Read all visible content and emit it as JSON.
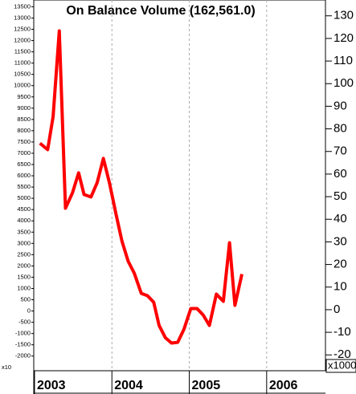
{
  "chart_data": {
    "type": "line",
    "title": "On Balance Volume (162,561.0)",
    "y_unit_label": "x10",
    "y2_unit_label": "x1000",
    "x": [
      2003.07,
      2003.17,
      2003.24,
      2003.32,
      2003.4,
      2003.49,
      2003.57,
      2003.64,
      2003.73,
      2003.81,
      2003.89,
      2003.97,
      2004.05,
      2004.13,
      2004.21,
      2004.29,
      2004.38,
      2004.46,
      2004.54,
      2004.61,
      2004.69,
      2004.77,
      2004.85,
      2004.93,
      2005.02,
      2005.1,
      2005.18,
      2005.26,
      2005.35,
      2005.44,
      2005.52,
      2005.59,
      2005.68
    ],
    "series": [
      {
        "name": "On Balance Volume",
        "color": "#ff0000",
        "values": [
          7445,
          7160,
          8620,
          12430,
          4560,
          5240,
          6130,
          5170,
          5060,
          5700,
          6770,
          5660,
          4350,
          3100,
          2210,
          1670,
          780,
          680,
          390,
          -640,
          -1180,
          -1420,
          -1390,
          -820,
          110,
          110,
          -180,
          -640,
          750,
          430,
          3030,
          250,
          1640
        ]
      }
    ],
    "xlim": [
      2002.99,
      2006.76
    ],
    "xticks": [
      2003,
      2004,
      2005,
      2006
    ],
    "ylim": [
      -2650,
      13800
    ],
    "yticks": [
      -2000,
      -1500,
      -1000,
      -500,
      0,
      500,
      1000,
      1500,
      2000,
      2500,
      3000,
      3500,
      4000,
      4500,
      5000,
      5500,
      6000,
      6500,
      7000,
      7500,
      8000,
      8500,
      9000,
      9500,
      10000,
      10500,
      11000,
      11500,
      12000,
      12500,
      13000,
      13500
    ],
    "y2lim": [
      -27,
      137
    ],
    "y2ticks": [
      -20,
      -10,
      0,
      10,
      20,
      30,
      40,
      50,
      60,
      70,
      80,
      90,
      100,
      110,
      120,
      130
    ],
    "grid": true
  }
}
